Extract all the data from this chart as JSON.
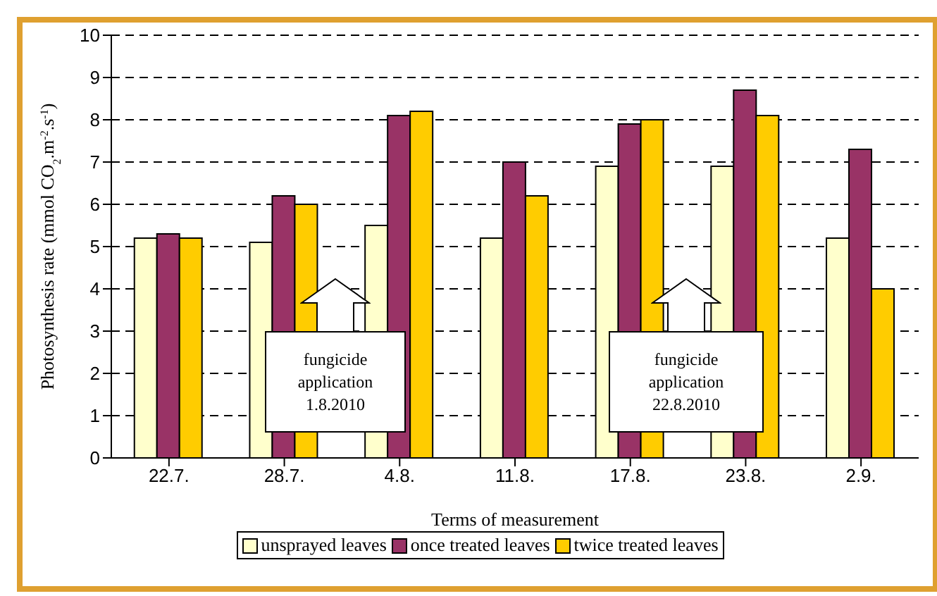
{
  "chart_data": {
    "type": "bar",
    "xlabel": "Terms of measurement",
    "ylabel": "Photosynthesis rate (mmol CO$_{2}$.m$^{-2}$.s$^{-1}$)",
    "categories": [
      "22.7.",
      "28.7.",
      "4.8.",
      "11.8.",
      "17.8.",
      "23.8.",
      "2.9."
    ],
    "series": [
      {
        "name": "unsprayed leaves",
        "color": "#ffffcc",
        "values": [
          5.2,
          5.1,
          5.5,
          5.2,
          6.9,
          6.9,
          5.2
        ]
      },
      {
        "name": "once treated leaves",
        "color": "#993366",
        "values": [
          5.3,
          6.2,
          8.1,
          7.0,
          7.9,
          8.7,
          7.3
        ]
      },
      {
        "name": "twice treated leaves",
        "color": "#ffcc00",
        "values": [
          5.2,
          6.0,
          8.2,
          6.2,
          8.0,
          8.1,
          4.0
        ]
      }
    ],
    "ylim": [
      0,
      10
    ],
    "yticks": [
      0,
      1,
      2,
      3,
      4,
      5,
      6,
      7,
      8,
      9,
      10
    ],
    "grid": "y",
    "legend": "bottom",
    "annotations": [
      "fungicide application 1.8.2010",
      "fungicide application 22.8.2010"
    ]
  }
}
